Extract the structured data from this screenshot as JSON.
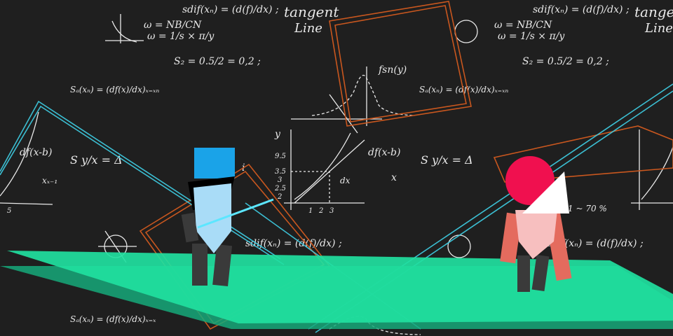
{
  "colors": {
    "background": "#1f1f1f",
    "chalk": "#e9e9e9",
    "platform": "#21dfa0",
    "platform_shadow": "#16a97a",
    "laser": "#3fd0e6",
    "frame_orange": "#c9571f",
    "player_head": "#1aa3e8",
    "player_shirt": "#a9dcf7",
    "enemy_head": "#f0104f",
    "enemy_body": "#f7bfbf",
    "enemy_limb": "#e46b5e",
    "limb_dark": "#3a3a3a"
  },
  "chalkboard": {
    "formulas": [
      "sdif(xₙ) = (d(f)/dx) ;",
      "tangent",
      "Line",
      "ω = NB/CN",
      "ω = 1/s × π/y",
      "S₂ = 0.5/2 = 0,2 ;",
      "Sₐ(xₙ) = (df(x)/dx)ₓ₌ₓₙ",
      "fsn(y)",
      "df(x-b)",
      "S y/x = Δ",
      "dx",
      "xₓ₋₁",
      "1 ~ 70 %",
      "Sₐ(xₙ) = (df(x)/dx)ₓ₌ₓ",
      "9.5",
      "3.5",
      "3",
      "2.5",
      "2",
      "1",
      "2",
      "3",
      "5",
      "i",
      "y",
      "x"
    ]
  },
  "player": {
    "name_icon": "player-character"
  },
  "enemy": {
    "name_icon": "enemy-character"
  }
}
